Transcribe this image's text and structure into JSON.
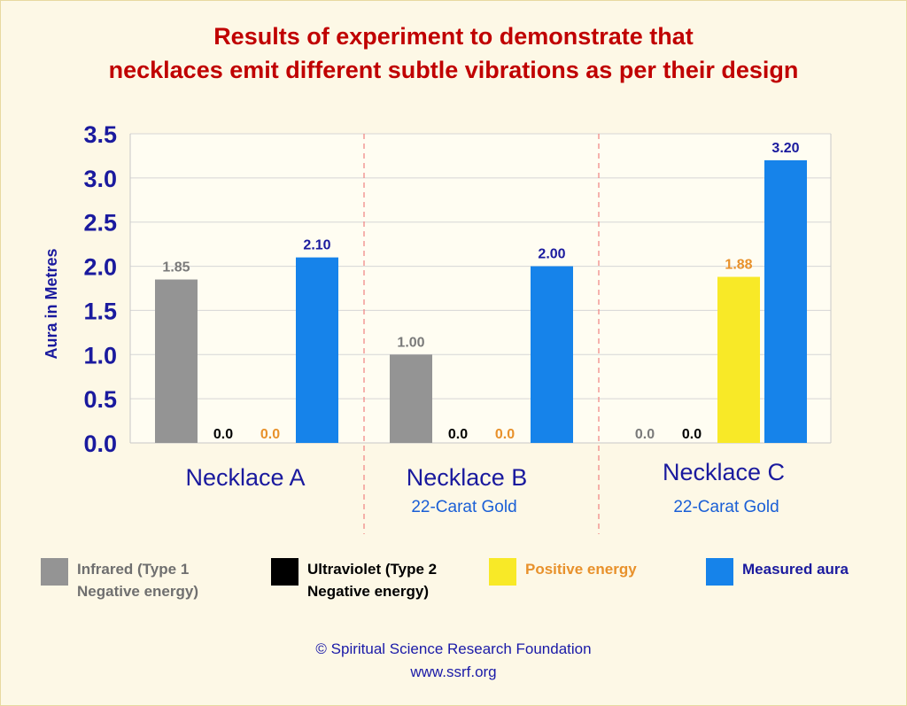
{
  "title_line1": "Results of experiment to demonstrate that",
  "title_line2": "necklaces emit different subtle vibrations as per their design",
  "chart_data": {
    "type": "bar",
    "ylabel": "Aura in Metres",
    "ylim": [
      0,
      3.5
    ],
    "yticks": [
      "0.0",
      "0.5",
      "1.0",
      "1.5",
      "2.0",
      "2.5",
      "3.0",
      "3.5"
    ],
    "categories": [
      "Necklace A",
      "Necklace B",
      "Necklace C"
    ],
    "category_sublabels": [
      "",
      "22-Carat Gold",
      "22-Carat Gold"
    ],
    "series": [
      {
        "name": "Infrared (Type 1 Negative energy)",
        "color": "#949494",
        "label_color": "#7a7a7a",
        "values": [
          1.85,
          1.0,
          0.0
        ],
        "labels": [
          "1.85",
          "1.00",
          "0.0"
        ]
      },
      {
        "name": "Ultraviolet (Type 2 Negative energy)",
        "color": "#000000",
        "label_color": "#000000",
        "values": [
          0.0,
          0.0,
          0.0
        ],
        "labels": [
          "0.0",
          "0.0",
          "0.0"
        ]
      },
      {
        "name": "Positive energy",
        "color": "#f8e927",
        "label_color": "#e8912b",
        "values": [
          0.0,
          0.0,
          1.88
        ],
        "labels": [
          "0.0",
          "0.0",
          "1.88"
        ]
      },
      {
        "name": "Measured aura",
        "color": "#1683ea",
        "label_color": "#1a1a9e",
        "values": [
          2.1,
          2.0,
          3.2
        ],
        "labels": [
          "2.10",
          "2.00",
          "3.20"
        ]
      }
    ]
  },
  "legend": [
    {
      "line1": "Infrared (Type 1",
      "line2": "Negative energy)",
      "color": "#949494",
      "text_color": "#6f6f6f"
    },
    {
      "line1": "Ultraviolet (Type 2",
      "line2": "Negative energy)",
      "color": "#000000",
      "text_color": "#000000"
    },
    {
      "line1": "Positive energy",
      "line2": "",
      "color": "#f8e927",
      "text_color": "#e8912b"
    },
    {
      "line1": "Measured aura",
      "line2": "",
      "color": "#1683ea",
      "text_color": "#1a1a9e"
    }
  ],
  "footer": {
    "copyright": "© Spiritual Science Research Foundation",
    "url": "www.ssrf.org"
  }
}
